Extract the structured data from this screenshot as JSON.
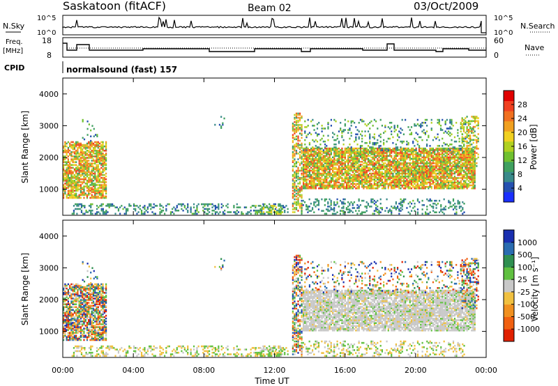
{
  "header": {
    "station": "Saskatoon (fitACF)",
    "beam": "Beam 02",
    "date": "03/Oct/2009"
  },
  "left_labels": {
    "nsky": "N.Sky",
    "freq": "Freq.",
    "mhz": "[MHz]",
    "cpid": "CPID"
  },
  "right_labels": {
    "nsearch": "N.Search",
    "nave": "Nave"
  },
  "cpid_text": "normalsound (fast) 157",
  "noise_panel": {
    "ticks_left": [
      "10^5",
      "10^0"
    ],
    "ticks_right": [
      "10^5",
      "10^0"
    ]
  },
  "freq_panel": {
    "ticks_left": [
      "18",
      "8"
    ],
    "ticks_right": [
      "60",
      "0"
    ]
  },
  "chart_data": [
    {
      "type": "heatmap",
      "title": "Power",
      "ylabel": "Slant Range [km]",
      "xlabel": "",
      "xlim_hours": [
        0,
        24
      ],
      "ylim": [
        180,
        4500
      ],
      "y_ticks": [
        "1000",
        "2000",
        "3000",
        "4000"
      ],
      "colorbar_label": "Power [dB]",
      "colorbar_ticks": [
        "28",
        "24",
        "20",
        "16",
        "12",
        "8",
        "4"
      ],
      "colorbar_colors": [
        "#1a2fff",
        "#2550b0",
        "#3a8a8a",
        "#40a060",
        "#70c030",
        "#b0d020",
        "#f0d020",
        "#f0a020",
        "#f07020",
        "#f04020",
        "#e00000"
      ]
    },
    {
      "type": "heatmap",
      "title": "Velocity",
      "ylabel": "Slant Range [km]",
      "xlabel": "Time UT",
      "xlim_hours": [
        0,
        24
      ],
      "ylim": [
        180,
        4500
      ],
      "x_ticks": [
        "00:00",
        "04:00",
        "08:00",
        "12:00",
        "16:00",
        "20:00",
        "00:00"
      ],
      "y_ticks": [
        "1000",
        "2000",
        "3000",
        "4000"
      ],
      "colorbar_label": "Velocity [m s⁻¹]",
      "colorbar_ticks": [
        "1000",
        "500",
        "100",
        "25",
        "-25",
        "-100",
        "-500",
        "-1000"
      ],
      "colorbar_colors": [
        "#1a2fb0",
        "#2a6cb0",
        "#2f8f50",
        "#60c040",
        "#c8c8c8",
        "#f0c040",
        "#f09020",
        "#f06010",
        "#e02000"
      ]
    }
  ]
}
